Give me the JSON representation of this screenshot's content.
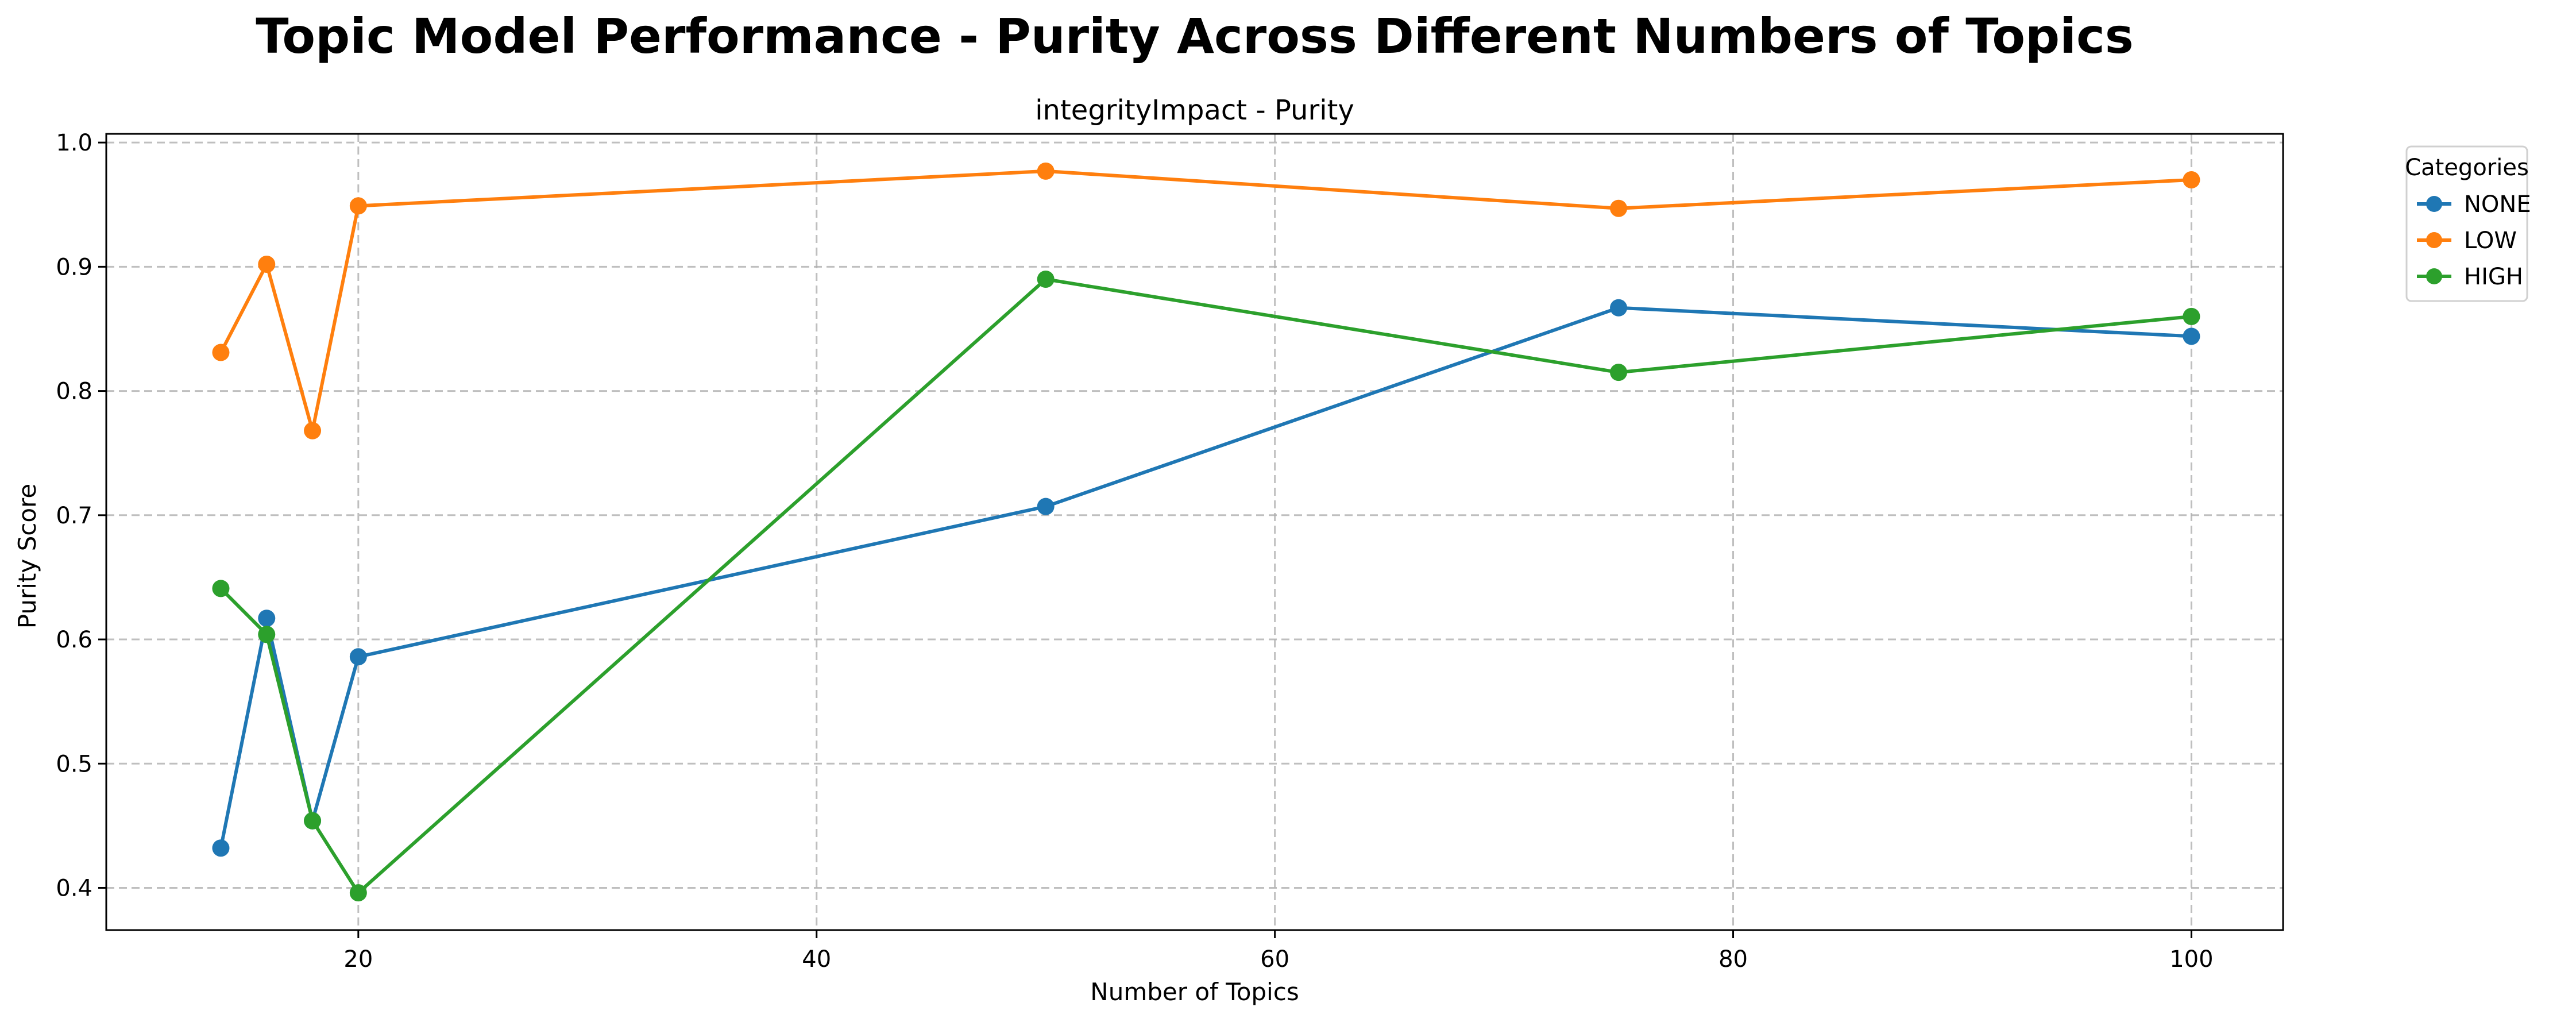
{
  "chart_data": {
    "type": "line",
    "title": "Topic Model Performance - Purity Across Different Numbers of Topics",
    "subtitle": "integrityImpact - Purity",
    "xlabel": "Number of Topics",
    "ylabel": "Purity Score",
    "x": [
      14,
      16,
      18,
      20,
      50,
      75,
      100
    ],
    "xlim": [
      9,
      104
    ],
    "ylim": [
      0.366,
      1.007
    ],
    "xticks": [
      20,
      40,
      60,
      80,
      100
    ],
    "yticks": [
      0.4,
      0.5,
      0.6,
      0.7,
      0.8,
      0.9,
      1.0
    ],
    "xtick_labels": [
      "20",
      "40",
      "60",
      "80",
      "100"
    ],
    "ytick_labels": [
      "0.4",
      "0.5",
      "0.6",
      "0.7",
      "0.8",
      "0.9",
      "1.0"
    ],
    "grid": true,
    "legend": {
      "title": "Categories",
      "placement": "outside-top-right"
    },
    "series": [
      {
        "name": "NONE",
        "color": "#1f77b4",
        "values": [
          0.432,
          0.617,
          0.454,
          0.586,
          0.707,
          0.867,
          0.844
        ]
      },
      {
        "name": "LOW",
        "color": "#ff7f0e",
        "values": [
          0.831,
          0.902,
          0.768,
          0.949,
          0.977,
          0.947,
          0.97
        ]
      },
      {
        "name": "HIGH",
        "color": "#2ca02c",
        "values": [
          0.641,
          0.604,
          0.454,
          0.396,
          0.89,
          0.815,
          0.86
        ]
      }
    ]
  }
}
